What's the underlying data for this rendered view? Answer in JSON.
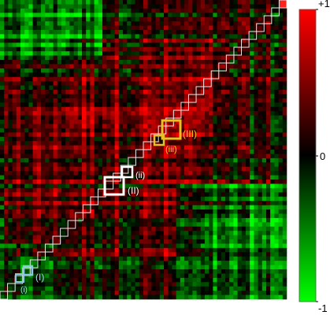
{
  "chart_data": {
    "type": "heatmap",
    "title": "",
    "xlabel": "",
    "ylabel": "",
    "colorscale": {
      "min": -1,
      "max": 1,
      "low_color": "#00ff00",
      "mid_color": "#000000",
      "high_color": "#ff0000"
    },
    "colorbar": {
      "ticks": [
        {
          "value": 1,
          "label": "+1"
        },
        {
          "value": 0,
          "label": "0"
        },
        {
          "value": -1,
          "label": "-1"
        }
      ]
    },
    "matrix_description": "square correlation matrix with unit diagonal; hierarchical block structure along the diagonal",
    "annotations": [
      {
        "label": "(III)",
        "color": "#e8c020"
      },
      {
        "label": "(iii)",
        "color": "#e8c020"
      },
      {
        "label": "(ii)",
        "color": "#ffffff"
      },
      {
        "label": "(II)",
        "color": "#ffffff"
      },
      {
        "label": "(I)",
        "color": "#a8d8ea"
      },
      {
        "label": "(i)",
        "color": "#a8d8ea"
      }
    ]
  }
}
